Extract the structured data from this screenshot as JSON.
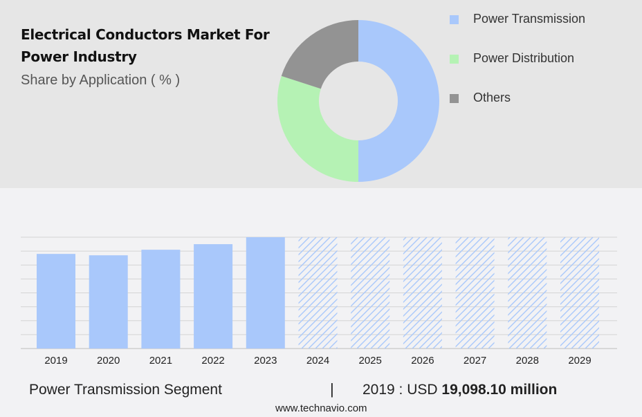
{
  "header": {
    "title": "Electrical Conductors Market For Power Industry",
    "subtitle": "Share by Application ( % )"
  },
  "colors": {
    "power_transmission": "#a9c8fb",
    "power_distribution": "#b5f2b4",
    "others": "#939393",
    "hatch": "#a9c8fb"
  },
  "chart_data": [
    {
      "type": "pie",
      "donut": true,
      "categories": [
        "Power Transmission",
        "Power Distribution",
        "Others"
      ],
      "values": [
        50,
        30,
        20
      ],
      "legend": "right",
      "icons": [
        "square-swatch-icon",
        "square-swatch-icon",
        "square-swatch-icon"
      ]
    },
    {
      "type": "bar",
      "categories": [
        "2019",
        "2020",
        "2021",
        "2022",
        "2023",
        "2024",
        "2025",
        "2026",
        "2027",
        "2028",
        "2029"
      ],
      "values": [
        68,
        67,
        71,
        75,
        80,
        80,
        80,
        80,
        80,
        80,
        80
      ],
      "forecast_from": "2024",
      "forecast_style": "hatched",
      "ylim": [
        0,
        80
      ],
      "grid": true
    }
  ],
  "footer": {
    "segment": "Power Transmission Segment",
    "divider": "|",
    "value_prefix": "2019 : USD",
    "value": "19,098.10 million",
    "source": "www.technavio.com"
  }
}
